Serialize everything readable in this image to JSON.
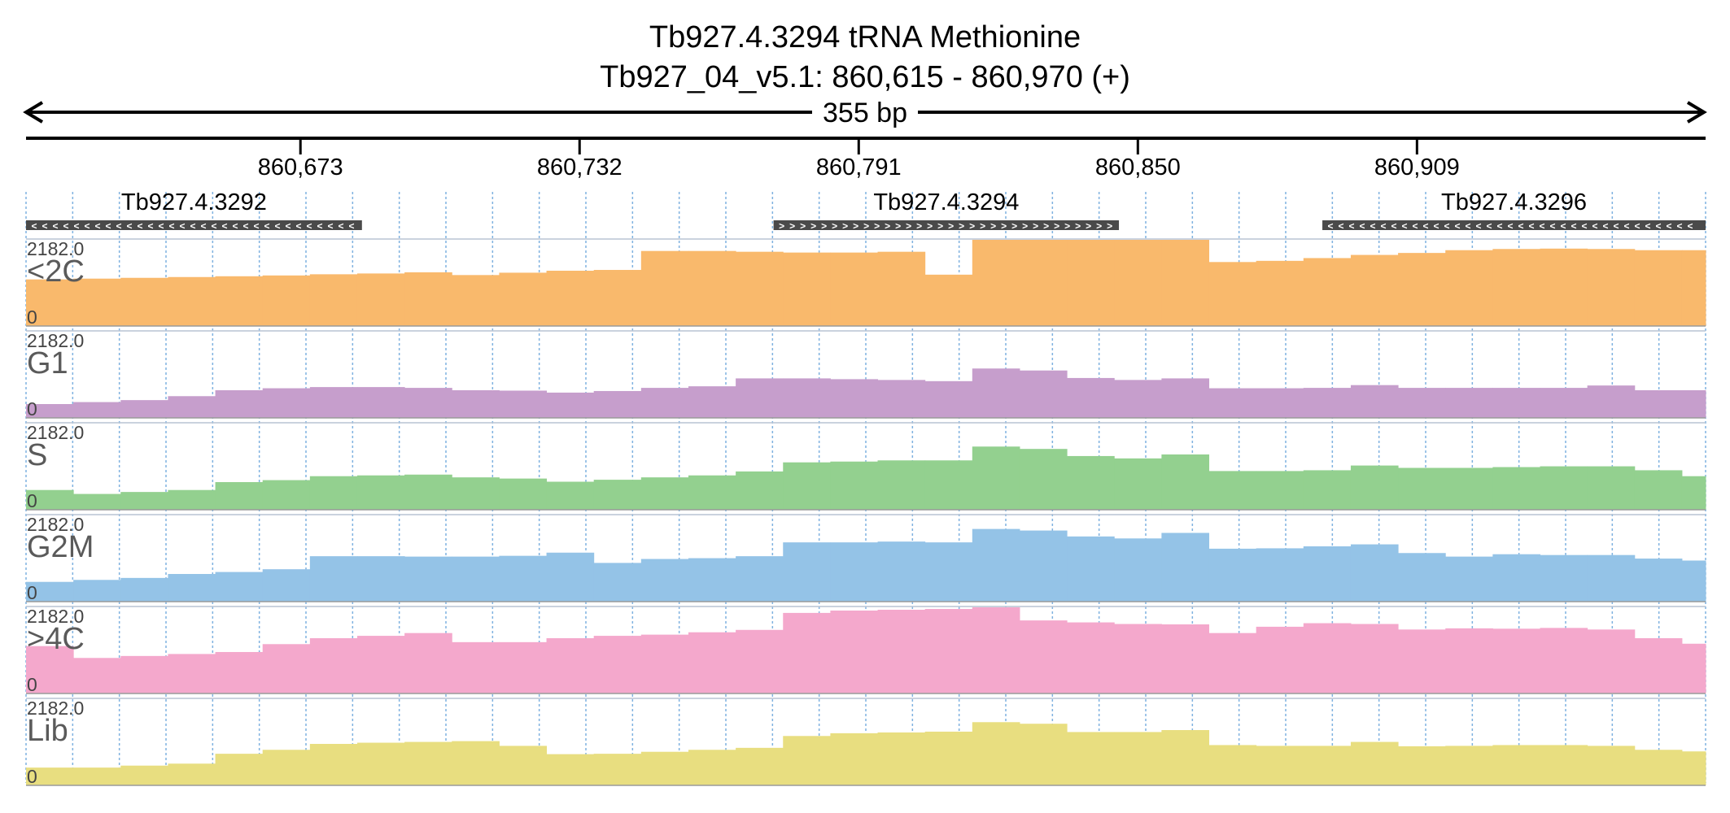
{
  "title": {
    "line1": "Tb927.4.3294  tRNA Methionine",
    "line2": "Tb927_04_v5.1: 860,615 - 860,970 (+)"
  },
  "span_label": "355 bp",
  "colors": {
    "text": "#000000",
    "grid": "#7fb2e0",
    "gene_bar": "#4a4a4a",
    "track_name": "#5a5a5a",
    "track_border": "#b9c4d4"
  },
  "chart_data": {
    "type": "area",
    "x_range": [
      860615,
      860970
    ],
    "x_ticks": [
      {
        "value": 860673,
        "label": "860,673"
      },
      {
        "value": 860732,
        "label": "860,732"
      },
      {
        "value": 860791,
        "label": "860,791"
      },
      {
        "value": 860850,
        "label": "860,850"
      },
      {
        "value": 860909,
        "label": "860,909"
      }
    ],
    "genes": [
      {
        "name": "Tb927.4.3292",
        "start": 860615,
        "end": 860686,
        "strand": "-"
      },
      {
        "name": "Tb927.4.3294",
        "start": 860773,
        "end": 860846,
        "strand": "+"
      },
      {
        "name": "Tb927.4.3296",
        "start": 860889,
        "end": 860970,
        "strand": "-"
      }
    ],
    "bin_edges": [
      860615,
      860625,
      860635,
      860645,
      860655,
      860665,
      860675,
      860685,
      860695,
      860705,
      860715,
      860725,
      860735,
      860745,
      860755,
      860765,
      860775,
      860785,
      860795,
      860805,
      860815,
      860825,
      860835,
      860845,
      860855,
      860865,
      860875,
      860885,
      860895,
      860905,
      860915,
      860925,
      860935,
      860945,
      860955,
      860965,
      860970
    ],
    "y_range": [
      0,
      2182.0
    ],
    "series": [
      {
        "name": "<2C",
        "color": "#f9b96c",
        "values": [
          1180,
          1200,
          1220,
          1240,
          1260,
          1280,
          1310,
          1330,
          1360,
          1290,
          1350,
          1400,
          1420,
          1900,
          1900,
          1880,
          1860,
          1860,
          1880,
          1300,
          2182,
          2182,
          2182,
          2182,
          2182,
          1620,
          1650,
          1720,
          1800,
          1850,
          1920,
          1950,
          1960,
          1950,
          1920,
          1920
        ]
      },
      {
        "name": "G1",
        "color": "#c69ecc",
        "values": [
          350,
          400,
          450,
          550,
          700,
          750,
          780,
          780,
          760,
          700,
          690,
          640,
          680,
          760,
          800,
          1000,
          1000,
          980,
          960,
          930,
          1250,
          1200,
          1010,
          960,
          1000,
          750,
          750,
          760,
          830,
          760,
          760,
          760,
          760,
          820,
          700,
          700
        ]
      },
      {
        "name": "S",
        "color": "#93d08f",
        "values": [
          500,
          400,
          450,
          500,
          700,
          750,
          850,
          870,
          890,
          820,
          790,
          710,
          760,
          820,
          870,
          970,
          1200,
          1220,
          1250,
          1250,
          1600,
          1540,
          1360,
          1300,
          1400,
          980,
          980,
          1000,
          1120,
          1060,
          1060,
          1080,
          1100,
          1100,
          1000,
          850
        ]
      },
      {
        "name": "G2M",
        "color": "#94c3e7",
        "values": [
          500,
          550,
          600,
          700,
          750,
          820,
          1150,
          1150,
          1140,
          1140,
          1160,
          1240,
          980,
          1080,
          1100,
          1150,
          1500,
          1500,
          1520,
          1500,
          1840,
          1800,
          1650,
          1600,
          1740,
          1340,
          1350,
          1400,
          1450,
          1230,
          1140,
          1200,
          1180,
          1180,
          1090,
          1040
        ]
      },
      {
        "name": ">4C",
        "color": "#f4a8cc",
        "values": [
          1200,
          900,
          950,
          1000,
          1050,
          1250,
          1400,
          1460,
          1530,
          1300,
          1300,
          1400,
          1460,
          1490,
          1550,
          1610,
          2040,
          2100,
          2120,
          2140,
          2182,
          1850,
          1800,
          1760,
          1750,
          1530,
          1690,
          1780,
          1760,
          1620,
          1650,
          1640,
          1660,
          1620,
          1400,
          1260
        ]
      },
      {
        "name": "Lib",
        "color": "#e8de80",
        "values": [
          450,
          450,
          500,
          550,
          800,
          900,
          1050,
          1080,
          1100,
          1120,
          1000,
          790,
          800,
          850,
          900,
          950,
          1250,
          1320,
          1340,
          1360,
          1600,
          1560,
          1350,
          1350,
          1400,
          1020,
          1000,
          1000,
          1100,
          990,
          1000,
          1020,
          1020,
          1000,
          900,
          860
        ]
      }
    ]
  },
  "track_scale": {
    "max_label": "2182.0",
    "min_label": "0"
  }
}
